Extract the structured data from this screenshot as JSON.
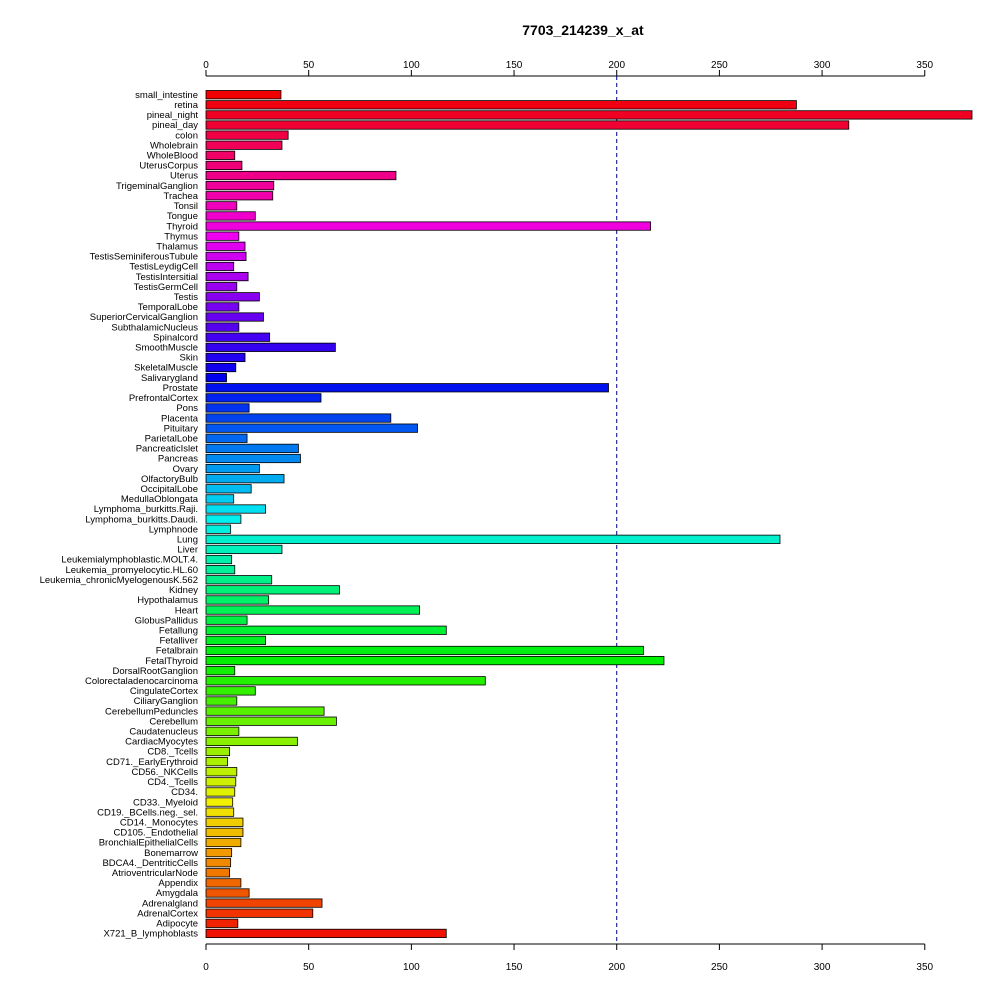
{
  "chart_data": {
    "type": "bar",
    "orientation": "horizontal",
    "title": "7703_214239_x_at",
    "xlim": [
      0,
      373
    ],
    "x_ticks": [
      0,
      50,
      100,
      150,
      200,
      250,
      300,
      350
    ],
    "axes": [
      "top",
      "bottom"
    ],
    "reference_line": 200,
    "color_scheme": "rainbow",
    "categories": [
      "small_intestine",
      "retina",
      "pineal_night",
      "pineal_day",
      "colon",
      "Wholebrain",
      "WholeBlood",
      "UterusCorpus",
      "Uterus",
      "TrigeminalGanglion",
      "Trachea",
      "Tonsil",
      "Tongue",
      "Thyroid",
      "Thymus",
      "Thalamus",
      "TestisSeminiferousTubule",
      "TestisLeydigCell",
      "TestisIntersitial",
      "TestisGermCell",
      "Testis",
      "TemporalLobe",
      "SuperiorCervicalGanglion",
      "SubthalamicNucleus",
      "Spinalcord",
      "SmoothMuscle",
      "Skin",
      "SkeletalMuscle",
      "Salivarygland",
      "Prostate",
      "PrefrontalCortex",
      "Pons",
      "Placenta",
      "Pituitary",
      "ParietalLobe",
      "PancreaticIslet",
      "Pancreas",
      "Ovary",
      "OlfactoryBulb",
      "OccipitalLobe",
      "MedullaOblongata",
      "Lymphoma_burkitts.Raji.",
      "Lymphoma_burkitts.Daudi.",
      "Lymphnode",
      "Lung",
      "Liver",
      "Leukemialymphoblastic.MOLT.4.",
      "Leukemia_promyelocytic.HL.60",
      "Leukemia_chronicMyelogenousK.562",
      "Kidney",
      "Hypothalamus",
      "Heart",
      "GlobusPallidus",
      "Fetallung",
      "Fetalliver",
      "Fetalbrain",
      "FetalThyroid",
      "DorsalRootGanglion",
      "Colorectaladenocarcinoma",
      "CingulateCortex",
      "CiliaryGanglion",
      "CerebellumPeduncles",
      "Cerebellum",
      "Caudatenucleus",
      "CardiacMyocytes",
      "CD8._Tcells",
      "CD71._EarlyErythroid",
      "CD56._NKCells",
      "CD4._Tcells",
      "CD34.",
      "CD33._Myeloid",
      "CD19._BCells.neg._sel.",
      "CD14._Monocytes",
      "CD105._Endothelial",
      "BronchialEpithelialCells",
      "Bonemarrow",
      "BDCA4._DentriticCells",
      "AtrioventricularNode",
      "Appendix",
      "Amygdala",
      "Adrenalgland",
      "AdrenalCortex",
      "Adipocyte",
      "X721_B_lymphoblasts"
    ],
    "values": [
      36.5,
      287.5,
      373,
      313,
      40,
      37,
      14,
      17.5,
      92.5,
      33,
      32.5,
      15,
      24,
      216.5,
      16,
      19,
      19.5,
      13.5,
      20.5,
      15,
      26,
      16,
      28,
      16,
      31,
      63,
      19,
      14.5,
      10,
      196,
      56,
      21,
      90,
      103,
      20,
      45,
      46,
      26,
      38,
      22,
      13.5,
      29,
      17,
      12,
      279.5,
      37,
      12.5,
      14,
      32,
      65,
      30.5,
      104,
      20,
      117,
      29,
      213,
      223,
      14,
      136,
      24,
      15,
      57.5,
      63.5,
      16,
      44.5,
      11.5,
      10.5,
      15,
      14.5,
      14,
      13,
      13.5,
      18,
      18,
      17,
      12.5,
      12,
      11.5,
      17,
      21,
      56.5,
      52,
      15.5,
      117
    ]
  }
}
